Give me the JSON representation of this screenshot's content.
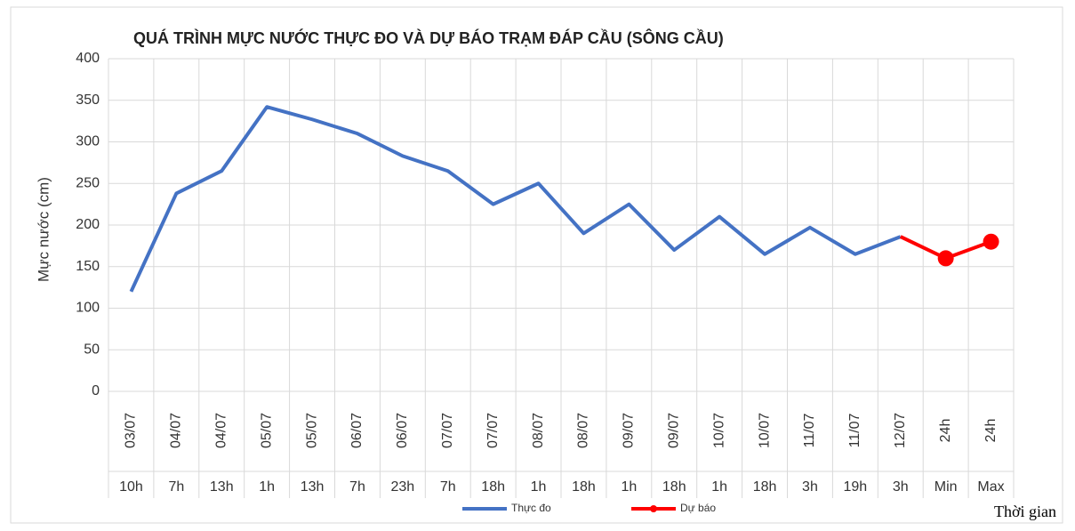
{
  "chart_data": {
    "type": "line",
    "title": "QUÁ TRÌNH MỰC NƯỚC THỰC ĐO VÀ DỰ BÁO TRẠM ĐÁP CẦU (SÔNG CẦU)",
    "y_label": "Mực nước (cm)",
    "x_label": "Thời gian",
    "dates": [
      "03/07",
      "04/07",
      "04/07",
      "05/07",
      "05/07",
      "06/07",
      "06/07",
      "07/07",
      "07/07",
      "08/07",
      "08/07",
      "09/07",
      "09/07",
      "10/07",
      "10/07",
      "11/07",
      "11/07",
      "12/07",
      "24h",
      "24h"
    ],
    "categories": [
      "10h",
      "7h",
      "13h",
      "1h",
      "13h",
      "7h",
      "23h",
      "7h",
      "18h",
      "1h",
      "18h",
      "1h",
      "18h",
      "1h",
      "18h",
      "3h",
      "19h",
      "3h",
      "Min",
      "Max"
    ],
    "series": [
      {
        "name": "Thực đo",
        "color": "#4472c4",
        "values": [
          120,
          238,
          265,
          342,
          327,
          310,
          283,
          265,
          225,
          250,
          190,
          225,
          170,
          210,
          165,
          197,
          165,
          186,
          null,
          null
        ]
      },
      {
        "name": "Dự báo",
        "color": "#ff0000",
        "values": [
          null,
          null,
          null,
          null,
          null,
          null,
          null,
          null,
          null,
          null,
          null,
          null,
          null,
          null,
          null,
          null,
          null,
          186,
          160,
          180
        ]
      }
    ],
    "ylim": [
      0,
      400
    ],
    "yticks": [
      0,
      50,
      100,
      150,
      200,
      250,
      300,
      350,
      400
    ],
    "grid": true
  }
}
